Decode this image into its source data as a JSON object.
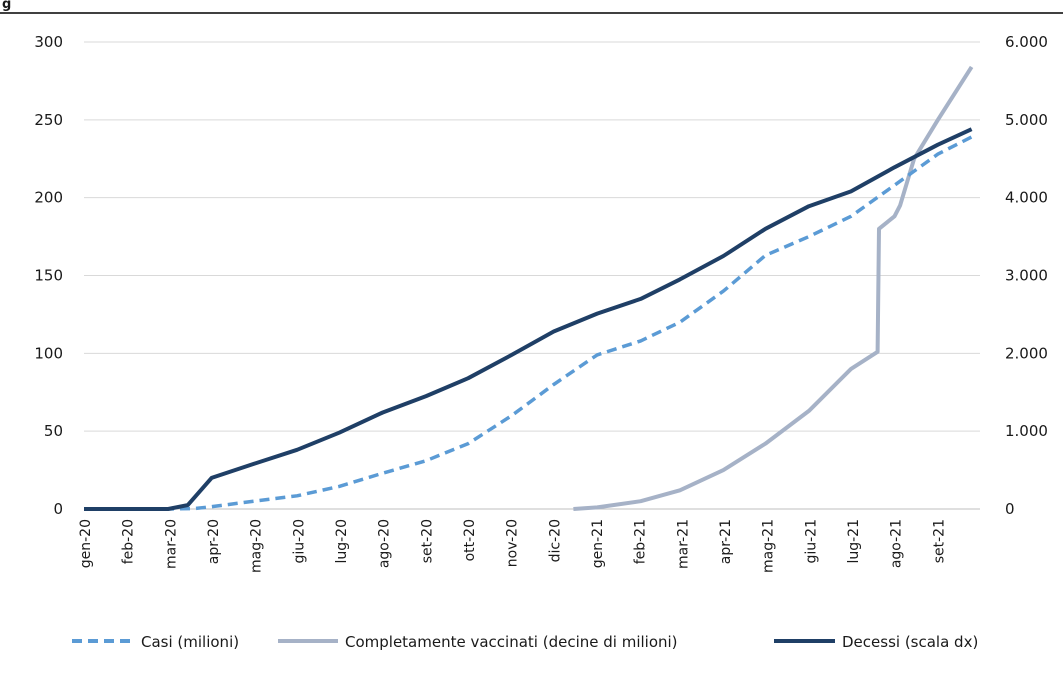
{
  "chart_data": {
    "type": "line",
    "title": "",
    "figure_label": "g",
    "xlabel": "",
    "ylabel": "",
    "y_left": {
      "min": 0,
      "max": 300,
      "ticks": [
        "0",
        "50",
        "100",
        "150",
        "200",
        "250",
        "300"
      ]
    },
    "y_right": {
      "min": 0,
      "max": 6000,
      "ticks": [
        "0",
        "1.000",
        "2.000",
        "3.000",
        "4.000",
        "5.000",
        "6.000"
      ]
    },
    "x_range": [
      "2020-01-01",
      "2021-10-01"
    ],
    "categories": [
      "gen-20",
      "feb-20",
      "mar-20",
      "apr-20",
      "mag-20",
      "giu-20",
      "lug-20",
      "ago-20",
      "set-20",
      "ott-20",
      "nov-20",
      "dic-20",
      "gen-21",
      "feb-21",
      "mar-21",
      "apr-21",
      "mag-21",
      "giu-21",
      "lug-21",
      "ago-21",
      "set-21"
    ],
    "grid": true,
    "legend_position": "bottom",
    "series": [
      {
        "name": "Casi (milioni)",
        "axis": "left",
        "color": "#5b9bd5",
        "style": "dashed",
        "x": [
          "2020-01-01",
          "2020-03-01",
          "2020-03-20",
          "2020-04-01",
          "2020-05-01",
          "2020-06-01",
          "2020-07-01",
          "2020-08-01",
          "2020-09-01",
          "2020-10-01",
          "2020-11-01",
          "2020-12-01",
          "2021-01-01",
          "2021-02-01",
          "2021-03-01",
          "2021-04-01",
          "2021-05-01",
          "2021-06-01",
          "2021-07-01",
          "2021-08-01",
          "2021-09-01",
          "2021-09-25"
        ],
        "y": [
          0,
          0,
          0.3,
          1.5,
          5,
          8.5,
          14.5,
          23,
          31,
          42,
          60,
          80,
          99,
          108,
          120,
          140,
          163,
          175,
          188,
          208,
          228,
          239
        ]
      },
      {
        "name": "Completamente vaccinati (decine di milioni)",
        "axis": "left",
        "color": "#a6b2c7",
        "style": "solid",
        "x": [
          "2020-12-15",
          "2021-01-01",
          "2021-02-01",
          "2021-03-01",
          "2021-04-01",
          "2021-05-01",
          "2021-06-01",
          "2021-07-01",
          "2021-07-20",
          "2021-07-21",
          "2021-08-01",
          "2021-08-05",
          "2021-08-15",
          "2021-09-01",
          "2021-09-25"
        ],
        "y": [
          0,
          1,
          5,
          12,
          25,
          42,
          63,
          90,
          101,
          180,
          188,
          195,
          225,
          250,
          284
        ]
      },
      {
        "name": "Decessi (scala dx)",
        "axis": "right",
        "color": "#1f3f66",
        "style": "solid",
        "x": [
          "2020-01-01",
          "2020-03-01",
          "2020-03-15",
          "2020-04-01",
          "2020-05-01",
          "2020-06-01",
          "2020-07-01",
          "2020-08-01",
          "2020-09-01",
          "2020-10-01",
          "2020-11-01",
          "2020-12-01",
          "2021-01-01",
          "2021-02-01",
          "2021-03-01",
          "2021-04-01",
          "2021-05-01",
          "2021-06-01",
          "2021-07-01",
          "2021-08-01",
          "2021-09-01",
          "2021-09-25"
        ],
        "y": [
          0,
          0,
          50,
          400,
          580,
          760,
          980,
          1240,
          1450,
          1680,
          1980,
          2280,
          2510,
          2700,
          2950,
          3250,
          3600,
          3890,
          4080,
          4390,
          4680,
          4880
        ]
      }
    ]
  }
}
